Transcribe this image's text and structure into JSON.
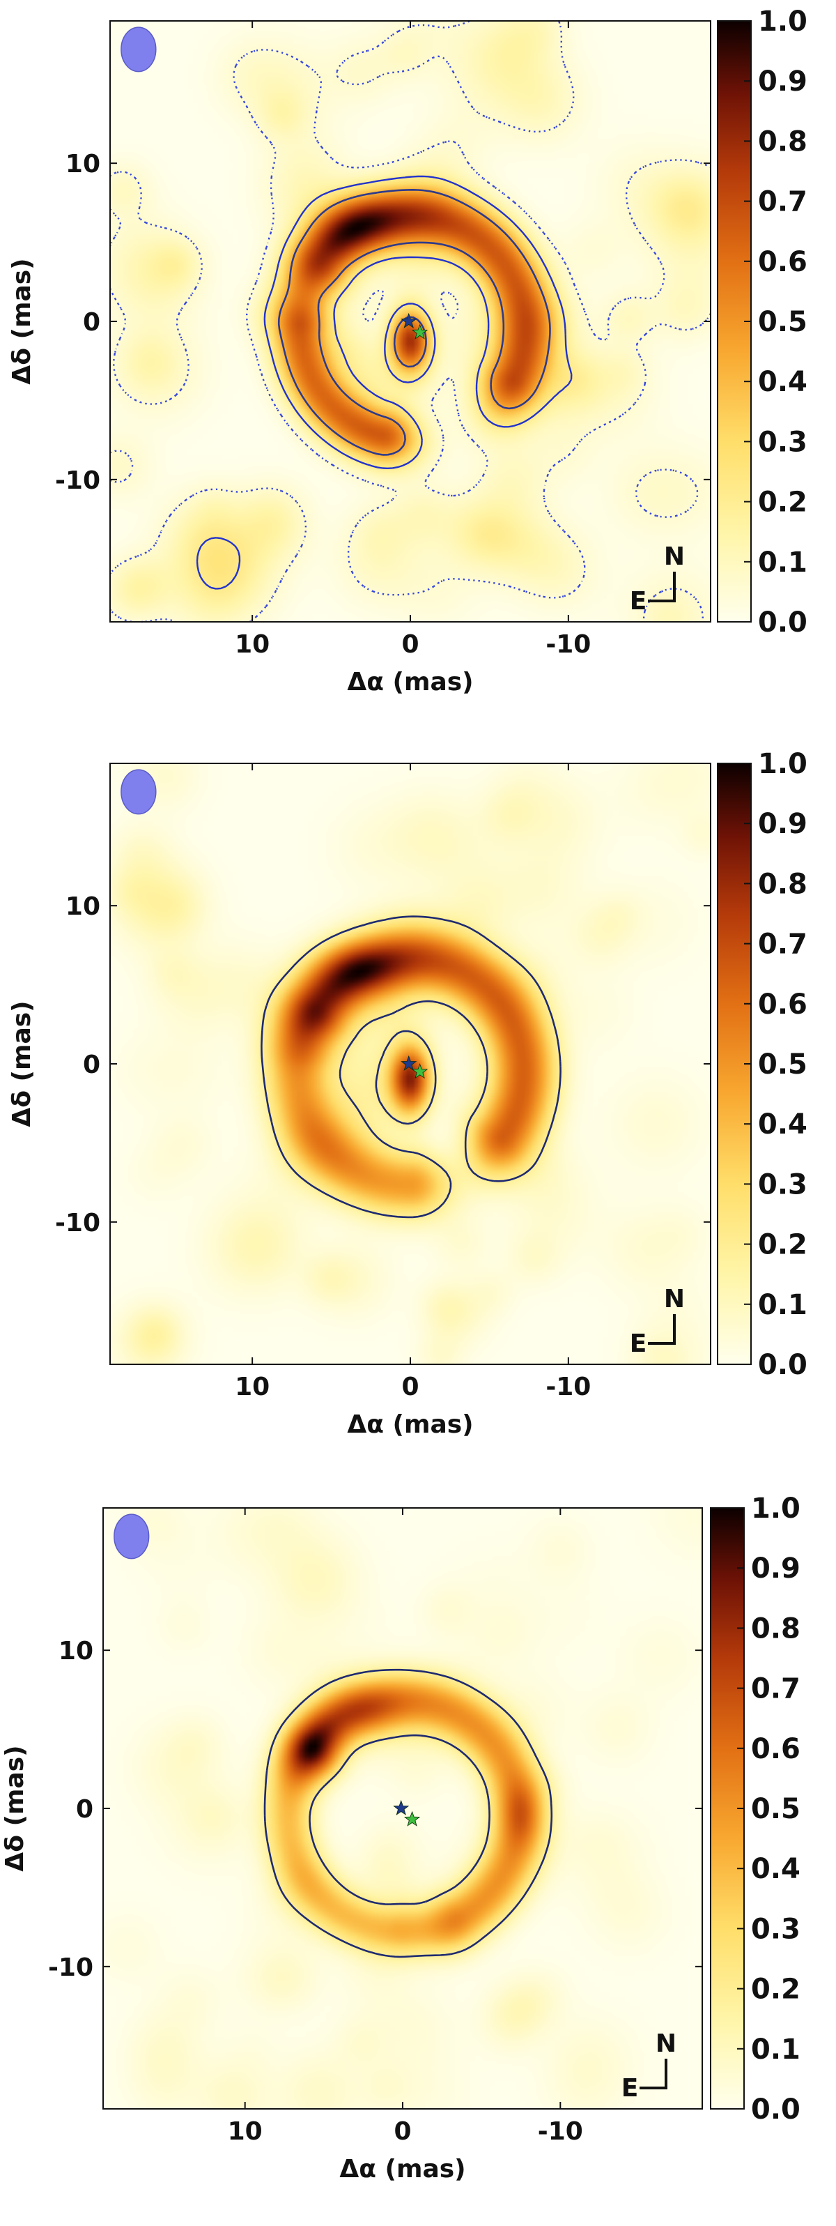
{
  "chart_data": [
    {
      "type": "heatmap",
      "panel": "top",
      "xlabel": "Δα (mas)",
      "ylabel": "Δδ (mas)",
      "xlim": [
        19,
        -19
      ],
      "ylim": [
        -19,
        19
      ],
      "xticks": [
        10,
        0,
        -10
      ],
      "yticks": [
        10,
        0,
        -10
      ],
      "colorbar": {
        "min": 0.0,
        "max": 1.0,
        "ticks": [
          "1.0",
          "0.9",
          "0.8",
          "0.7",
          "0.6",
          "0.5",
          "0.4",
          "0.3",
          "0.2",
          "0.1",
          "0.0"
        ]
      },
      "compass": {
        "north": "N",
        "east": "E"
      },
      "beam": {
        "x": 17.2,
        "y": 17.2,
        "rx": 1.1,
        "ry": 1.4
      },
      "stars": [
        {
          "x": 0.1,
          "y": 0.0,
          "color": "#1f3a8a"
        },
        {
          "x": -0.6,
          "y": -0.7,
          "color": "#3fbf3f"
        }
      ],
      "components": [
        {
          "kind": "arc",
          "r": 7.3,
          "start": 38,
          "end": 205,
          "sigma": 1.4,
          "amp": 0.85,
          "cx": 0,
          "cy": -0.5
        },
        {
          "kind": "blob",
          "x": 2.8,
          "y": 6.2,
          "sx": 1.8,
          "sy": 1.3,
          "amp": 0.35
        },
        {
          "kind": "arc",
          "r": 7.0,
          "start": 285,
          "end": 360,
          "sigma": 1.3,
          "amp": 0.8,
          "cx": 0,
          "cy": -0.5
        },
        {
          "kind": "blob",
          "x": 0.0,
          "y": -1.2,
          "sx": 0.9,
          "sy": 1.4,
          "amp": 0.95
        },
        {
          "kind": "noise",
          "amp": 0.14,
          "seed": 11
        }
      ],
      "contours": [
        {
          "level": 0.45,
          "style": "solid",
          "color": "#2d3a8c"
        },
        {
          "level": 0.22,
          "style": "dashed",
          "color": "#2233cc"
        },
        {
          "level": 0.06,
          "style": "dotted",
          "color": "#3344dd"
        }
      ]
    },
    {
      "type": "heatmap",
      "panel": "middle",
      "xlabel": "Δα (mas)",
      "ylabel": "Δδ (mas)",
      "xlim": [
        19,
        -19
      ],
      "ylim": [
        -19,
        19
      ],
      "xticks": [
        10,
        0,
        -10
      ],
      "yticks": [
        10,
        0,
        -10
      ],
      "colorbar": {
        "min": 0.0,
        "max": 1.0,
        "ticks": [
          "1.0",
          "0.9",
          "0.8",
          "0.7",
          "0.6",
          "0.5",
          "0.4",
          "0.3",
          "0.2",
          "0.1",
          "0.0"
        ]
      },
      "compass": {
        "north": "N",
        "east": "E"
      },
      "beam": {
        "x": 17.2,
        "y": 17.2,
        "rx": 1.1,
        "ry": 1.4
      },
      "stars": [
        {
          "x": 0.1,
          "y": 0.0,
          "color": "#1f3a8a"
        },
        {
          "x": -0.6,
          "y": -0.5,
          "color": "#3fbf3f"
        }
      ],
      "components": [
        {
          "kind": "arc",
          "r": 7.2,
          "start": 35,
          "end": 215,
          "sigma": 1.5,
          "amp": 0.8,
          "cx": 0,
          "cy": -0.5
        },
        {
          "kind": "blob",
          "x": 3.0,
          "y": 6.0,
          "sx": 2.0,
          "sy": 1.2,
          "amp": 0.35
        },
        {
          "kind": "arc",
          "r": 7.2,
          "start": 270,
          "end": 365,
          "sigma": 1.5,
          "amp": 0.6,
          "cx": 0,
          "cy": -0.5
        },
        {
          "kind": "blob",
          "x": 0.0,
          "y": -1.0,
          "sx": 0.9,
          "sy": 1.5,
          "amp": 0.95
        },
        {
          "kind": "noise",
          "amp": 0.09,
          "seed": 29
        }
      ],
      "contours": [
        {
          "level": 0.2,
          "style": "solid",
          "color": "#1e2a70"
        }
      ]
    },
    {
      "type": "heatmap",
      "panel": "bottom",
      "xlabel": "Δα (mas)",
      "ylabel": "Δδ (mas)",
      "xlim": [
        19,
        -19
      ],
      "ylim": [
        -19,
        19
      ],
      "xticks": [
        10,
        0,
        -10
      ],
      "yticks": [
        10,
        0,
        -10
      ],
      "colorbar": {
        "min": 0.0,
        "max": 1.0,
        "ticks": [
          "1.0",
          "0.9",
          "0.8",
          "0.7",
          "0.6",
          "0.5",
          "0.4",
          "0.3",
          "0.2",
          "0.1",
          "0.0"
        ]
      },
      "compass": {
        "north": "N",
        "east": "E"
      },
      "beam": {
        "x": 17.2,
        "y": 17.2,
        "rx": 1.1,
        "ry": 1.4
      },
      "stars": [
        {
          "x": 0.1,
          "y": 0.0,
          "color": "#1f3a8a"
        },
        {
          "x": -0.6,
          "y": -0.7,
          "color": "#3fbf3f"
        }
      ],
      "components": [
        {
          "kind": "arc",
          "r": 7.4,
          "start": 40,
          "end": 240,
          "sigma": 1.3,
          "amp": 0.9,
          "cx": 0,
          "cy": -0.5
        },
        {
          "kind": "blob",
          "x": 2.6,
          "y": 6.2,
          "sx": 2.0,
          "sy": 1.2,
          "amp": 0.4
        },
        {
          "kind": "blob",
          "x": 5.3,
          "y": 3.8,
          "sx": 1.2,
          "sy": 1.4,
          "amp": 0.35
        },
        {
          "kind": "arc",
          "r": 7.3,
          "start": 275,
          "end": 390,
          "sigma": 1.2,
          "amp": 0.7,
          "cx": 0,
          "cy": -0.5
        },
        {
          "kind": "blob",
          "x": -7.6,
          "y": -0.3,
          "sx": 1.0,
          "sy": 1.5,
          "amp": 0.35
        },
        {
          "kind": "noise",
          "amp": 0.09,
          "seed": 47
        }
      ],
      "contours": [
        {
          "level": 0.2,
          "style": "solid",
          "color": "#1e2a70"
        }
      ]
    }
  ]
}
